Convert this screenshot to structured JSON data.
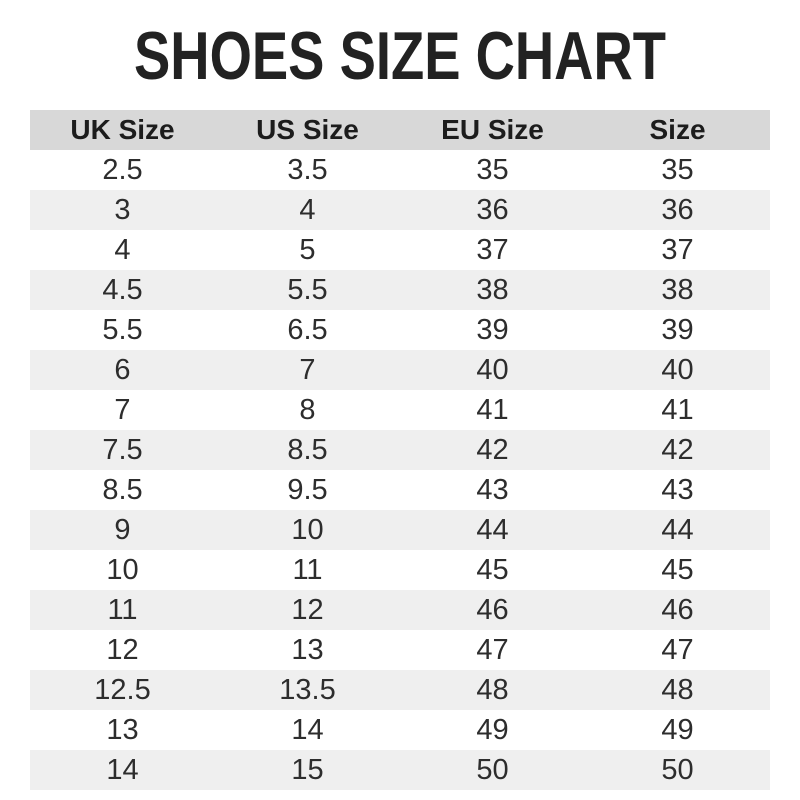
{
  "page": {
    "title": "SHOES SIZE CHART"
  },
  "colors": {
    "page_bg": "#ffffff",
    "title_text": "#222222",
    "header_bg": "#d8d8d8",
    "header_text": "#1c1c1c",
    "stripe_bg": "#efefef",
    "table_text": "#2d2d2d"
  },
  "chart_data": {
    "type": "table",
    "title": "SHOES SIZE CHART",
    "columns": [
      "UK Size",
      "US Size",
      "EU Size",
      "Size"
    ],
    "rows": [
      [
        "2.5",
        "3.5",
        "35",
        "35"
      ],
      [
        "3",
        "4",
        "36",
        "36"
      ],
      [
        "4",
        "5",
        "37",
        "37"
      ],
      [
        "4.5",
        "5.5",
        "38",
        "38"
      ],
      [
        "5.5",
        "6.5",
        "39",
        "39"
      ],
      [
        "6",
        "7",
        "40",
        "40"
      ],
      [
        "7",
        "8",
        "41",
        "41"
      ],
      [
        "7.5",
        "8.5",
        "42",
        "42"
      ],
      [
        "8.5",
        "9.5",
        "43",
        "43"
      ],
      [
        "9",
        "10",
        "44",
        "44"
      ],
      [
        "10",
        "11",
        "45",
        "45"
      ],
      [
        "11",
        "12",
        "46",
        "46"
      ],
      [
        "12",
        "13",
        "47",
        "47"
      ],
      [
        "12.5",
        "13.5",
        "48",
        "48"
      ],
      [
        "13",
        "14",
        "49",
        "49"
      ],
      [
        "14",
        "15",
        "50",
        "50"
      ]
    ],
    "layout": {
      "striped": true,
      "stripe_start_row": 2,
      "column_alignment": "center",
      "grid": false
    }
  }
}
